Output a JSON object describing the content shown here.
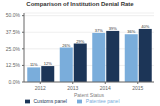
{
  "chart_data": {
    "type": "bar",
    "title": "Comparison of Institution Denial Rate",
    "xlabel": "Patent Status",
    "categories": [
      "2012",
      "2013",
      "2014",
      "2015"
    ],
    "series": [
      {
        "name": "Patentee panel",
        "color": "#7aaddb",
        "values": [
          11.0,
          26.0,
          37.0,
          36.0
        ],
        "value_labels": [
          "11%",
          "26%",
          "37%",
          "36%"
        ]
      },
      {
        "name": "Customs panel",
        "color": "#1c3557",
        "values": [
          12.0,
          29.0,
          38.5,
          40.0
        ],
        "value_labels": [
          "12%",
          "29%",
          "39%",
          "40%"
        ]
      }
    ],
    "ylim": [
      0,
      52
    ],
    "yticks": [
      {
        "value": 0.0,
        "label": "0.0%"
      },
      {
        "value": 12.5,
        "label": "12.5%"
      },
      {
        "value": 25.0,
        "label": "25.0%"
      },
      {
        "value": 37.5,
        "label": "37.5%"
      },
      {
        "value": 50.0,
        "label": "50.0%"
      }
    ],
    "grid": true,
    "legend": "bottom",
    "data_labels": true
  }
}
